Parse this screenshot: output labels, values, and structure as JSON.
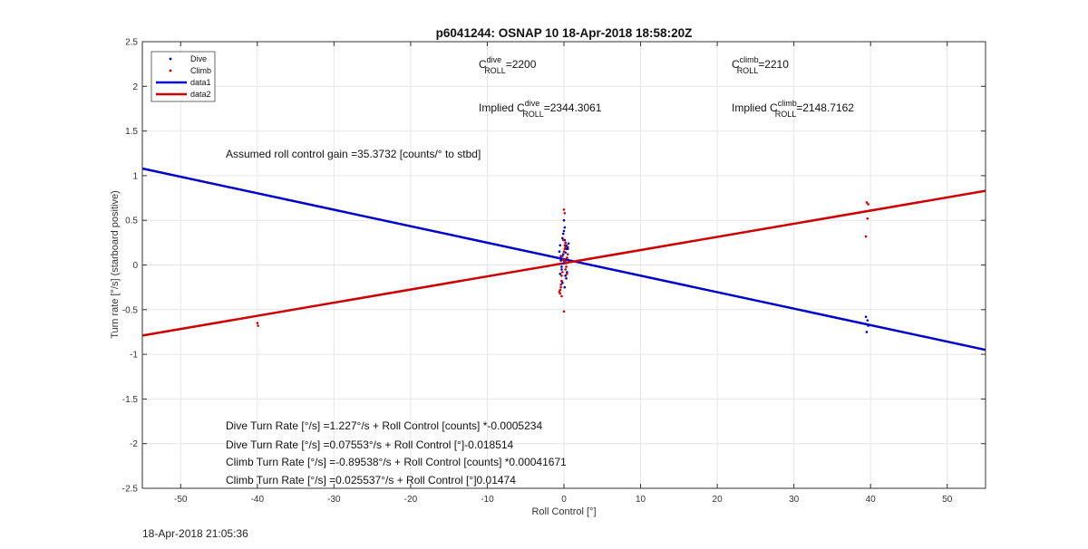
{
  "chart_data": {
    "type": "scatter",
    "title": "p6041244: OSNAP 10 18-Apr-2018 18:58:20Z",
    "xlabel": "Roll Control [°]",
    "ylabel": "Turn rate [°/s] (starboard positive)",
    "xlim": [
      -55,
      55
    ],
    "ylim": [
      -2.5,
      2.5
    ],
    "xticks": [
      -50,
      -40,
      -30,
      -20,
      -10,
      0,
      10,
      20,
      30,
      40,
      50
    ],
    "yticks": [
      -2.5,
      -2,
      -1.5,
      -1,
      -0.5,
      0,
      0.5,
      1,
      1.5,
      2,
      2.5
    ],
    "grid": true,
    "legend_position": "top-left",
    "legend": [
      "Dive",
      "Climb",
      "data1",
      "data2"
    ],
    "colors": {
      "dive": "#0000cc",
      "climb": "#cc0000"
    },
    "series": [
      {
        "name": "Dive",
        "kind": "points",
        "x": [
          -0.6,
          -0.5,
          -0.4,
          -0.3,
          -0.2,
          -0.1,
          0.0,
          0.1,
          0.2,
          0.3,
          0.4,
          0.5,
          0.6,
          -0.5,
          -0.3,
          0.0,
          0.2,
          0.4,
          -0.4,
          -0.1,
          0.1,
          0.3,
          0.5,
          -0.2,
          0.0,
          0.2,
          0.0,
          0.1,
          -0.3,
          0.3,
          39.4,
          39.6,
          39.7,
          39.5
        ],
        "y": [
          0.15,
          0.22,
          0.05,
          -0.02,
          0.3,
          0.12,
          0.5,
          0.42,
          0.25,
          0.18,
          0.08,
          0.2,
          0.24,
          -0.1,
          -0.05,
          0.02,
          -0.12,
          -0.08,
          0.1,
          0.35,
          0.28,
          -0.15,
          0.18,
          -0.2,
          0.05,
          0.14,
          0.38,
          -0.25,
          -0.18,
          0.22,
          -0.58,
          -0.62,
          -0.68,
          -0.75
        ]
      },
      {
        "name": "Climb",
        "kind": "points",
        "x": [
          -0.6,
          -0.5,
          -0.4,
          -0.3,
          -0.2,
          -0.1,
          0.0,
          0.1,
          0.2,
          0.3,
          0.4,
          0.5,
          -0.5,
          -0.3,
          0.0,
          0.2,
          0.4,
          -0.4,
          -0.1,
          0.1,
          0.3,
          -0.2,
          0.0,
          0.2,
          0.1,
          -0.3,
          0.2,
          -40.0,
          -39.9,
          39.5,
          39.7,
          39.6,
          39.4
        ],
        "y": [
          -0.3,
          -0.32,
          -0.22,
          -0.12,
          0.1,
          0.06,
          0.62,
          0.58,
          -0.05,
          0.02,
          -0.1,
          0.12,
          -0.28,
          -0.18,
          0.15,
          0.2,
          0.08,
          -0.25,
          0.28,
          0.22,
          -0.02,
          -0.08,
          -0.52,
          0.25,
          0.18,
          -0.35,
          0.05,
          -0.65,
          -0.68,
          0.7,
          0.68,
          0.52,
          0.32
        ]
      },
      {
        "name": "data1",
        "kind": "line",
        "x": [
          -55,
          55
        ],
        "y": [
          1.08,
          -0.95
        ]
      },
      {
        "name": "data2",
        "kind": "line",
        "x": [
          -55,
          55
        ],
        "y": [
          -0.79,
          0.83
        ]
      }
    ],
    "annotations": {
      "c_roll_dive_value": "=2200",
      "c_roll_climb_value": "=2210",
      "implied_prefix": "Implied ",
      "implied_dive_value": "=2344.3061",
      "implied_climb_value": "=2148.7162",
      "c_letter": "C",
      "sub_roll": "ROLL",
      "sup_dive": "dive",
      "sup_climb": "climb",
      "gain_text": "Assumed roll control gain =35.3732 [counts/° to stbd]",
      "fit_lines": [
        "Dive Turn Rate [°/s] =1.227°/s + Roll Control [counts] *-0.0005234",
        "Dive Turn Rate [°/s] =0.07553°/s + Roll Control [°]-0.018514",
        "Climb Turn Rate [°/s] =-0.89538°/s + Roll Control [counts] *0.00041671",
        "Climb Turn Rate [°/s] =0.025537°/s + Roll Control [°]0.01474"
      ]
    }
  },
  "timestamp": "18-Apr-2018 21:05:36"
}
